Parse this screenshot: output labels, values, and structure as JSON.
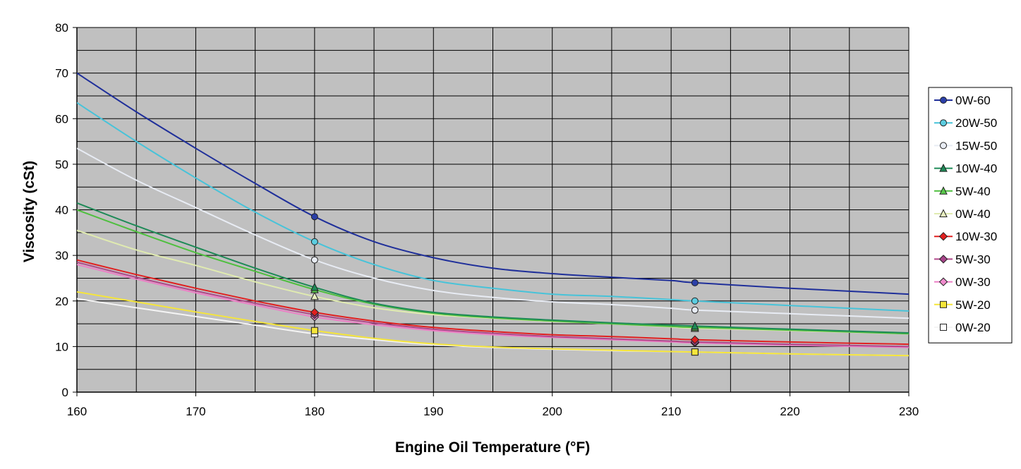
{
  "chart_data": {
    "type": "line",
    "title": "",
    "xlabel": "Engine Oil Temperature (°F)",
    "ylabel": "Viscosity (cSt)",
    "xlim": [
      160,
      230
    ],
    "ylim": [
      0,
      80
    ],
    "xticks": [
      160,
      170,
      180,
      190,
      200,
      210,
      220,
      230
    ],
    "yticks": [
      0,
      10,
      20,
      30,
      40,
      50,
      60,
      70,
      80
    ],
    "grid": true,
    "legend_position": "right",
    "plot_background": "#c0c0c0",
    "series": [
      {
        "name": "0W-60",
        "color": "#1f2f9a",
        "marker": "circle",
        "marker_fill": "#2b3fa8",
        "points_x": [
          180,
          212
        ],
        "points_y": [
          38.5,
          24.0
        ],
        "curve": [
          [
            160,
            70
          ],
          [
            165,
            61.5
          ],
          [
            170,
            53.5
          ],
          [
            175,
            45.8
          ],
          [
            180,
            38.5
          ],
          [
            185,
            33
          ],
          [
            190,
            29.5
          ],
          [
            195,
            27.2
          ],
          [
            200,
            26
          ],
          [
            205,
            25.2
          ],
          [
            210,
            24.5
          ],
          [
            212,
            24
          ],
          [
            220,
            22.8
          ],
          [
            230,
            21.5
          ]
        ]
      },
      {
        "name": "20W-50",
        "color": "#47c3d9",
        "marker": "circle",
        "marker_fill": "#5ccde0",
        "points_x": [
          180,
          212
        ],
        "points_y": [
          33.0,
          20.0
        ],
        "curve": [
          [
            160,
            63.5
          ],
          [
            165,
            55
          ],
          [
            170,
            47
          ],
          [
            175,
            39.5
          ],
          [
            180,
            33
          ],
          [
            185,
            28
          ],
          [
            190,
            24.5
          ],
          [
            195,
            22.8
          ],
          [
            200,
            21.5
          ],
          [
            205,
            21
          ],
          [
            210,
            20.3
          ],
          [
            212,
            20
          ],
          [
            220,
            19
          ],
          [
            230,
            17.8
          ]
        ]
      },
      {
        "name": "15W-50",
        "color": "#e8ecf4",
        "marker": "circle",
        "marker_fill": "#e8ecf4",
        "points_x": [
          180,
          212
        ],
        "points_y": [
          29.0,
          18.0
        ],
        "curve": [
          [
            160,
            53.5
          ],
          [
            165,
            46.5
          ],
          [
            170,
            40.5
          ],
          [
            175,
            34.5
          ],
          [
            180,
            29
          ],
          [
            185,
            25
          ],
          [
            190,
            22.3
          ],
          [
            195,
            20.8
          ],
          [
            200,
            19.8
          ],
          [
            205,
            19.2
          ],
          [
            210,
            18.4
          ],
          [
            212,
            18
          ],
          [
            220,
            17.2
          ],
          [
            230,
            16.2
          ]
        ]
      },
      {
        "name": "10W-40",
        "color": "#1e8a57",
        "marker": "triangle",
        "marker_fill": "#1e8a57",
        "points_x": [
          180,
          212
        ],
        "points_y": [
          23.0,
          14.5
        ],
        "curve": [
          [
            160,
            41.5
          ],
          [
            165,
            36.5
          ],
          [
            170,
            31.8
          ],
          [
            175,
            27.2
          ],
          [
            180,
            23
          ],
          [
            185,
            19.5
          ],
          [
            190,
            17.5
          ],
          [
            195,
            16.5
          ],
          [
            200,
            15.8
          ],
          [
            205,
            15.2
          ],
          [
            210,
            14.7
          ],
          [
            212,
            14.5
          ],
          [
            220,
            13.8
          ],
          [
            230,
            13
          ]
        ]
      },
      {
        "name": "5W-40",
        "color": "#4fbf3f",
        "marker": "triangle",
        "marker_fill": "#58c84a",
        "points_x": [
          180,
          212
        ],
        "points_y": [
          22.5,
          14.2
        ],
        "curve": [
          [
            160,
            40
          ],
          [
            165,
            35.2
          ],
          [
            170,
            30.6
          ],
          [
            175,
            26.5
          ],
          [
            180,
            22.5
          ],
          [
            185,
            19.3
          ],
          [
            190,
            17.3
          ],
          [
            195,
            16.3
          ],
          [
            200,
            15.6
          ],
          [
            205,
            15
          ],
          [
            210,
            14.4
          ],
          [
            212,
            14.2
          ],
          [
            220,
            13.6
          ],
          [
            230,
            12.8
          ]
        ]
      },
      {
        "name": "0W-40",
        "color": "#e0ebb0",
        "marker": "triangle",
        "marker_fill": "#e8f0c0",
        "points_x": [
          180,
          212
        ],
        "points_y": [
          21.0,
          14.0
        ],
        "curve": [
          [
            160,
            35.5
          ],
          [
            165,
            31.2
          ],
          [
            170,
            27.8
          ],
          [
            175,
            24.2
          ],
          [
            180,
            21
          ],
          [
            185,
            18.5
          ],
          [
            190,
            17
          ],
          [
            195,
            16.2
          ],
          [
            200,
            15.5
          ],
          [
            205,
            15
          ],
          [
            210,
            14.3
          ],
          [
            212,
            14
          ],
          [
            220,
            13.5
          ],
          [
            230,
            12.8
          ]
        ]
      },
      {
        "name": "10W-30",
        "color": "#e02020",
        "marker": "diamond",
        "marker_fill": "#e02020",
        "points_x": [
          180,
          212
        ],
        "points_y": [
          17.5,
          11.5
        ],
        "curve": [
          [
            160,
            29
          ],
          [
            165,
            25.8
          ],
          [
            170,
            22.8
          ],
          [
            175,
            20
          ],
          [
            180,
            17.5
          ],
          [
            185,
            15.6
          ],
          [
            190,
            14.2
          ],
          [
            195,
            13.3
          ],
          [
            200,
            12.6
          ],
          [
            205,
            12.2
          ],
          [
            210,
            11.7
          ],
          [
            212,
            11.5
          ],
          [
            220,
            11
          ],
          [
            230,
            10.5
          ]
        ]
      },
      {
        "name": "5W-30",
        "color": "#b0488a",
        "marker": "diamond",
        "marker_fill": "#a8448a",
        "points_x": [
          180,
          212
        ],
        "points_y": [
          17.0,
          11.0
        ],
        "curve": [
          [
            160,
            28.5
          ],
          [
            165,
            25.2
          ],
          [
            170,
            22.2
          ],
          [
            175,
            19.5
          ],
          [
            180,
            17
          ],
          [
            185,
            15.2
          ],
          [
            190,
            13.8
          ],
          [
            195,
            12.9
          ],
          [
            200,
            12.2
          ],
          [
            205,
            11.7
          ],
          [
            210,
            11.2
          ],
          [
            212,
            11
          ],
          [
            220,
            10.5
          ],
          [
            230,
            10
          ]
        ]
      },
      {
        "name": "0W-30",
        "color": "#ec7fc6",
        "marker": "diamond",
        "marker_fill": "#f08ccd",
        "points_x": [
          180,
          212
        ],
        "points_y": [
          16.5,
          10.8
        ],
        "curve": [
          [
            160,
            28
          ],
          [
            165,
            24.8
          ],
          [
            170,
            21.8
          ],
          [
            175,
            19.1
          ],
          [
            180,
            16.5
          ],
          [
            185,
            14.8
          ],
          [
            190,
            13.5
          ],
          [
            195,
            12.6
          ],
          [
            200,
            12
          ],
          [
            205,
            11.5
          ],
          [
            210,
            11
          ],
          [
            212,
            10.8
          ],
          [
            220,
            10.3
          ],
          [
            230,
            9.8
          ]
        ]
      },
      {
        "name": "5W-20",
        "color": "#f5e53a",
        "marker": "square",
        "marker_fill": "#f5e53a",
        "points_x": [
          180,
          212
        ],
        "points_y": [
          13.5,
          8.8
        ],
        "curve": [
          [
            160,
            22
          ],
          [
            165,
            19.8
          ],
          [
            170,
            17.6
          ],
          [
            175,
            15.5
          ],
          [
            180,
            13.5
          ],
          [
            185,
            11.8
          ],
          [
            190,
            10.6
          ],
          [
            195,
            9.9
          ],
          [
            200,
            9.5
          ],
          [
            205,
            9.2
          ],
          [
            210,
            8.9
          ],
          [
            212,
            8.8
          ],
          [
            220,
            8.4
          ],
          [
            230,
            8
          ]
        ]
      },
      {
        "name": "0W-20",
        "color": "#f4f4f4",
        "marker": "square",
        "marker_fill": "#ffffff",
        "points_x": [
          180,
          212
        ],
        "points_y": [
          12.8,
          8.8
        ],
        "curve": [
          [
            160,
            20.5
          ],
          [
            165,
            18.5
          ],
          [
            170,
            16.6
          ],
          [
            175,
            14.7
          ],
          [
            180,
            12.8
          ],
          [
            185,
            11.5
          ],
          [
            190,
            10.4
          ],
          [
            195,
            9.8
          ],
          [
            200,
            9.4
          ],
          [
            205,
            9.1
          ],
          [
            210,
            8.9
          ],
          [
            212,
            8.8
          ],
          [
            220,
            8.4
          ],
          [
            230,
            8
          ]
        ]
      }
    ]
  }
}
